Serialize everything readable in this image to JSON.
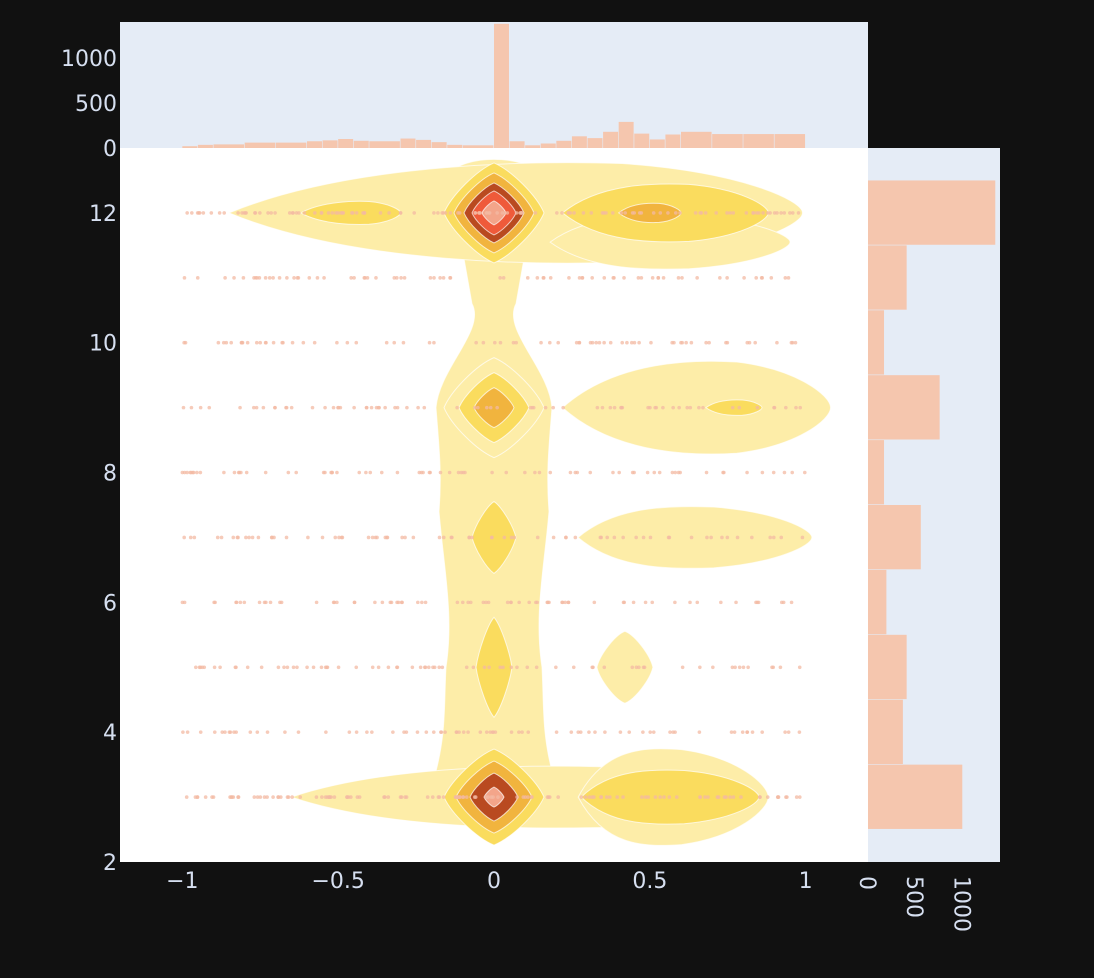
{
  "chart_data": {
    "type": "density_contour_with_marginal_histograms",
    "main": {
      "x_range": [
        -1.2,
        1.2
      ],
      "y_range": [
        2,
        13
      ],
      "x_ticks": [
        -1,
        -0.5,
        0,
        0.5,
        1
      ],
      "x_tick_labels": [
        "−1",
        "−0.5",
        "0",
        "0.5",
        "1"
      ],
      "y_ticks": [
        2,
        4,
        6,
        8,
        10,
        12
      ],
      "y_tick_labels": [
        "2",
        "4",
        "6",
        "8",
        "10",
        "12"
      ],
      "scatter_rows": [
        3,
        4,
        5,
        6,
        7,
        8,
        9,
        10,
        11,
        12
      ],
      "contour_colors": [
        "#fdeda8",
        "#fadc5e",
        "#f1b43e",
        "#b94a20",
        "#ef5a3a",
        "#f3a58a"
      ],
      "point_color": "#f3b9a3",
      "density_peaks": [
        {
          "x": 0,
          "y": 12,
          "level": 6
        },
        {
          "x": 0.7,
          "y": 12,
          "level": 3
        },
        {
          "x": -0.4,
          "y": 12,
          "level": 2
        },
        {
          "x": 0,
          "y": 9,
          "level": 3
        },
        {
          "x": 0.8,
          "y": 9,
          "level": 2
        },
        {
          "x": 0,
          "y": 7,
          "level": 2
        },
        {
          "x": 0.6,
          "y": 7,
          "level": 1
        },
        {
          "x": 0,
          "y": 5,
          "level": 2
        },
        {
          "x": 0.42,
          "y": 5,
          "level": 1
        },
        {
          "x": 0,
          "y": 3,
          "level": 5
        },
        {
          "x": 0.6,
          "y": 3,
          "level": 2
        },
        {
          "x": -0.45,
          "y": 3,
          "level": 1
        }
      ]
    },
    "top_histogram": {
      "y_range": [
        0,
        1400
      ],
      "y_ticks": [
        0,
        500,
        1000
      ],
      "y_tick_labels": [
        "0",
        "500",
        "1000"
      ],
      "bins": [
        {
          "x0": -1.0,
          "x1": -0.95,
          "count": 20
        },
        {
          "x0": -0.95,
          "x1": -0.9,
          "count": 35
        },
        {
          "x0": -0.9,
          "x1": -0.8,
          "count": 40
        },
        {
          "x0": -0.8,
          "x1": -0.7,
          "count": 60
        },
        {
          "x0": -0.7,
          "x1": -0.6,
          "count": 60
        },
        {
          "x0": -0.6,
          "x1": -0.55,
          "count": 75
        },
        {
          "x0": -0.55,
          "x1": -0.5,
          "count": 85
        },
        {
          "x0": -0.5,
          "x1": -0.45,
          "count": 100
        },
        {
          "x0": -0.45,
          "x1": -0.4,
          "count": 80
        },
        {
          "x0": -0.4,
          "x1": -0.3,
          "count": 75
        },
        {
          "x0": -0.3,
          "x1": -0.25,
          "count": 105
        },
        {
          "x0": -0.25,
          "x1": -0.2,
          "count": 90
        },
        {
          "x0": -0.2,
          "x1": -0.15,
          "count": 65
        },
        {
          "x0": -0.15,
          "x1": -0.1,
          "count": 35
        },
        {
          "x0": -0.1,
          "x1": 0.0,
          "count": 30
        },
        {
          "x0": 0.0,
          "x1": 0.05,
          "count": 1380
        },
        {
          "x0": 0.05,
          "x1": 0.1,
          "count": 75
        },
        {
          "x0": 0.1,
          "x1": 0.15,
          "count": 30
        },
        {
          "x0": 0.15,
          "x1": 0.2,
          "count": 50
        },
        {
          "x0": 0.2,
          "x1": 0.25,
          "count": 80
        },
        {
          "x0": 0.25,
          "x1": 0.3,
          "count": 130
        },
        {
          "x0": 0.3,
          "x1": 0.35,
          "count": 110
        },
        {
          "x0": 0.35,
          "x1": 0.4,
          "count": 180
        },
        {
          "x0": 0.4,
          "x1": 0.45,
          "count": 290
        },
        {
          "x0": 0.45,
          "x1": 0.5,
          "count": 160
        },
        {
          "x0": 0.5,
          "x1": 0.55,
          "count": 95
        },
        {
          "x0": 0.55,
          "x1": 0.6,
          "count": 150
        },
        {
          "x0": 0.6,
          "x1": 0.7,
          "count": 180
        },
        {
          "x0": 0.7,
          "x1": 0.8,
          "count": 155
        },
        {
          "x0": 0.8,
          "x1": 0.9,
          "count": 155
        },
        {
          "x0": 0.9,
          "x1": 1.0,
          "count": 155
        }
      ]
    },
    "right_histogram": {
      "x_range": [
        0,
        1400
      ],
      "x_ticks": [
        0,
        500,
        1000
      ],
      "x_tick_labels": [
        "0",
        "500",
        "1000"
      ],
      "bins": [
        {
          "y0": 2.5,
          "y1": 3.5,
          "count": 1000
        },
        {
          "y0": 3.5,
          "y1": 4.5,
          "count": 370
        },
        {
          "y0": 4.5,
          "y1": 5.5,
          "count": 410
        },
        {
          "y0": 5.5,
          "y1": 6.5,
          "count": 195
        },
        {
          "y0": 6.5,
          "y1": 7.5,
          "count": 560
        },
        {
          "y0": 7.5,
          "y1": 8.5,
          "count": 170
        },
        {
          "y0": 8.5,
          "y1": 9.5,
          "count": 760
        },
        {
          "y0": 9.5,
          "y1": 10.5,
          "count": 170
        },
        {
          "y0": 10.5,
          "y1": 11.5,
          "count": 410
        },
        {
          "y0": 11.5,
          "y1": 12.5,
          "count": 1350
        }
      ]
    },
    "colors": {
      "page_bg": "#111111",
      "main_bg": "#ffffff",
      "marginal_bg": "#e5ecf6",
      "bar": "#f5c6ae",
      "tick_text": "#d6dff0"
    }
  }
}
